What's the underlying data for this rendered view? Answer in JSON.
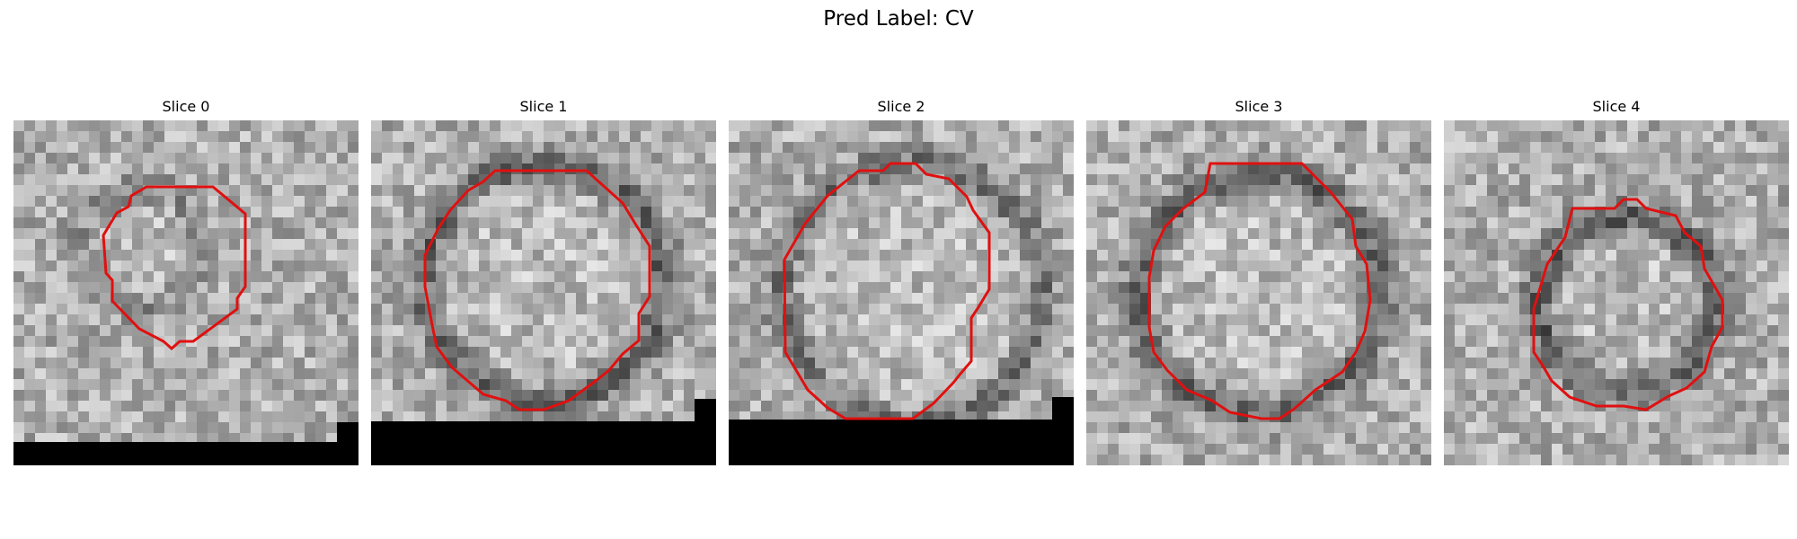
{
  "figure": {
    "title": "Pred Label: CV"
  },
  "panels": [
    {
      "label": "Slice 0"
    },
    {
      "label": "Slice 1"
    },
    {
      "label": "Slice 2"
    },
    {
      "label": "Slice 3"
    },
    {
      "label": "Slice 4"
    }
  ],
  "colors": {
    "contour": "#e01010",
    "mask": "#000000"
  }
}
